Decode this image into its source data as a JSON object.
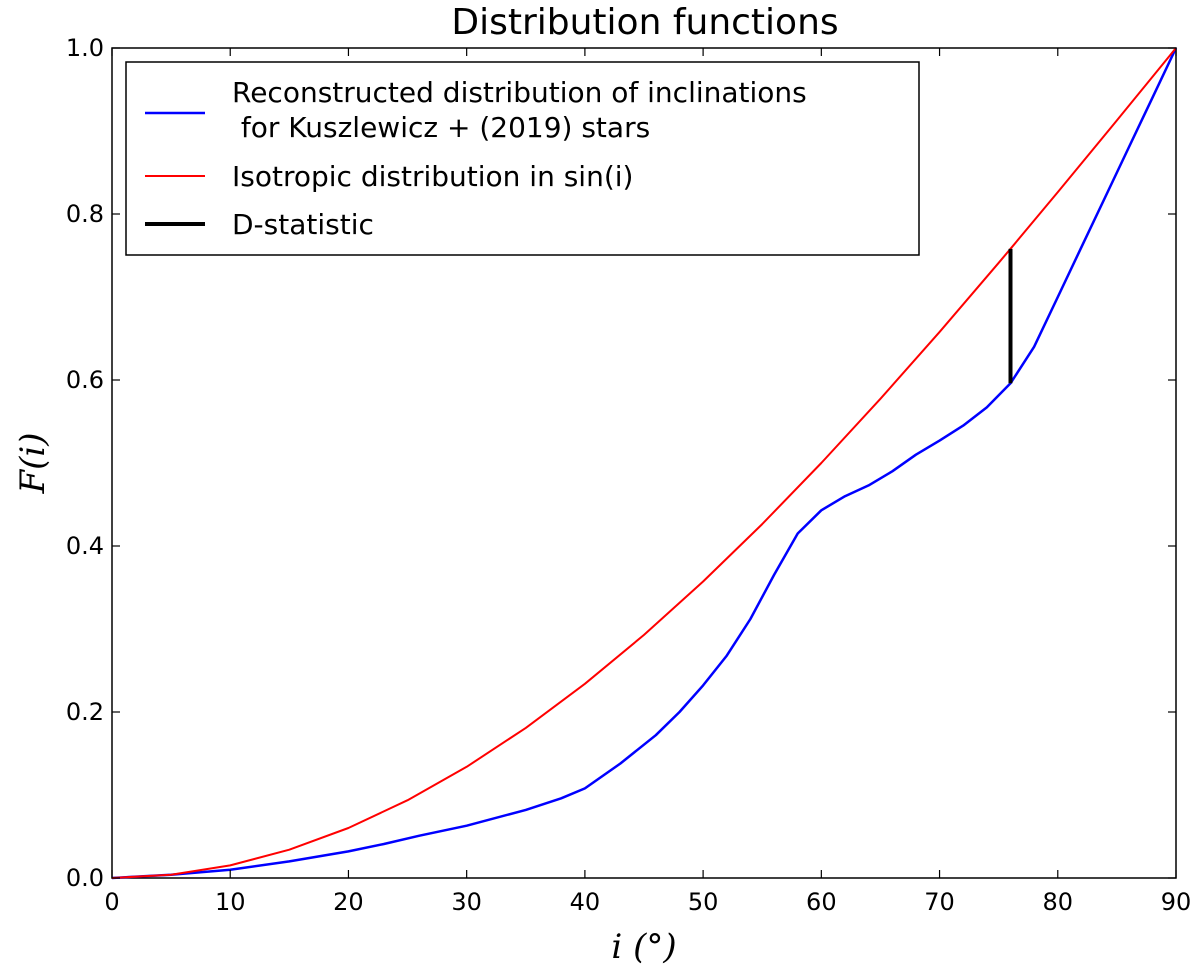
{
  "chart_data": {
    "type": "line",
    "title": "Distribution functions",
    "xlabel": "i (°)",
    "ylabel": "F(i)",
    "xlim": [
      0,
      90
    ],
    "ylim": [
      0.0,
      1.0
    ],
    "x_ticks": [
      "0",
      "10",
      "20",
      "30",
      "40",
      "50",
      "60",
      "70",
      "80",
      "90"
    ],
    "y_ticks": [
      "0.0",
      "0.2",
      "0.4",
      "0.6",
      "0.8",
      "1.0"
    ],
    "grid": false,
    "legend_position": "top-left",
    "series": [
      {
        "name": "Reconstructed distribution of inclinations\n for Kuszlewicz + (2019) stars",
        "color": "#0000ff",
        "x": [
          0,
          5,
          10,
          15,
          20,
          23,
          26,
          30,
          35,
          38,
          40,
          43,
          46,
          48,
          50,
          52,
          54,
          56,
          58,
          60,
          62,
          64,
          66,
          68,
          70,
          72,
          74,
          76,
          78,
          80,
          82,
          84,
          86,
          88,
          90
        ],
        "y": [
          0.0,
          0.004,
          0.01,
          0.02,
          0.032,
          0.041,
          0.051,
          0.063,
          0.082,
          0.096,
          0.108,
          0.138,
          0.172,
          0.2,
          0.232,
          0.268,
          0.312,
          0.365,
          0.415,
          0.443,
          0.46,
          0.473,
          0.49,
          0.51,
          0.527,
          0.545,
          0.567,
          0.596,
          0.64,
          0.7,
          0.76,
          0.82,
          0.88,
          0.94,
          1.0
        ]
      },
      {
        "name": "Isotropic distribution in sin(i)",
        "color": "#ff0000",
        "x": [
          0,
          5,
          10,
          15,
          20,
          25,
          30,
          35,
          40,
          45,
          50,
          55,
          60,
          65,
          70,
          75,
          76,
          80,
          85,
          90
        ],
        "y": [
          0.0,
          0.0038,
          0.0152,
          0.0341,
          0.0603,
          0.0937,
          0.134,
          0.1808,
          0.234,
          0.2929,
          0.3572,
          0.4264,
          0.5,
          0.5774,
          0.658,
          0.7412,
          0.7581,
          0.8264,
          0.9128,
          1.0
        ]
      },
      {
        "name": "D-statistic",
        "color": "#000000",
        "x": [
          76,
          76
        ],
        "y": [
          0.596,
          0.758
        ]
      }
    ]
  }
}
